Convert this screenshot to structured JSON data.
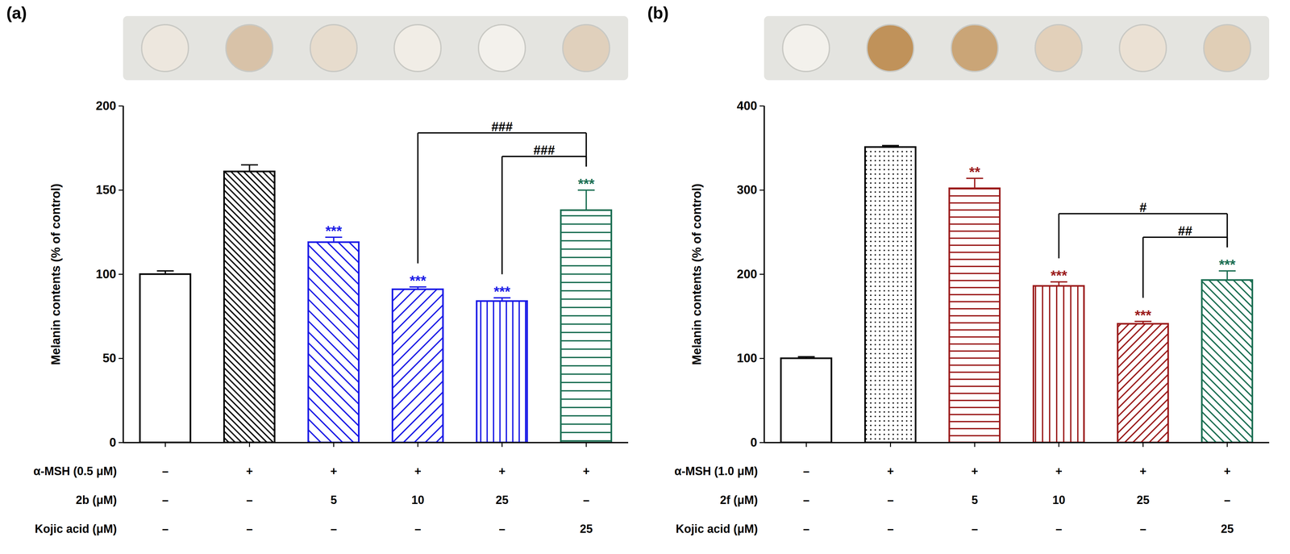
{
  "chart_data": [
    {
      "type": "bar",
      "panel_label": "(a)",
      "ylabel": "Melanin contents (% of control)",
      "categories": [
        null,
        null,
        null,
        null,
        null,
        null
      ],
      "values": [
        100,
        161,
        119,
        91,
        84,
        138
      ],
      "errors": [
        2,
        4,
        3,
        1.5,
        2,
        12
      ],
      "colors": [
        "#000000",
        "#000000",
        "#1a1ae6",
        "#1a1ae6",
        "#1a1ae6",
        "#1a6e52"
      ],
      "ylim": [
        0,
        200
      ],
      "yticks": [
        0,
        50,
        100,
        150,
        200
      ],
      "tick_labels": "y",
      "significance": [
        null,
        null,
        "***",
        "***",
        "***",
        "***"
      ],
      "comparisons": [
        {
          "from": 3,
          "to": 5,
          "label": "###"
        },
        {
          "from": 4,
          "to": 5,
          "label": "###"
        }
      ],
      "conditions": [
        {
          "label": "α-MSH (0.5 μM)",
          "values": [
            "–",
            "+",
            "+",
            "+",
            "+",
            "+"
          ]
        },
        {
          "label": "2b (μM)",
          "values": [
            "–",
            "–",
            "5",
            "10",
            "25",
            "–"
          ]
        },
        {
          "label": "Kojic acid (μM)",
          "values": [
            "–",
            "–",
            "–",
            "–",
            "–",
            "25"
          ]
        }
      ]
    },
    {
      "type": "bar",
      "panel_label": "(b)",
      "ylabel": "Melanin contents (% of control)",
      "categories": [
        null,
        null,
        null,
        null,
        null,
        null
      ],
      "values": [
        100,
        351,
        302,
        186,
        141,
        193
      ],
      "errors": [
        2,
        2,
        12,
        5,
        3,
        11
      ],
      "colors": [
        "#000000",
        "#000000",
        "#9b1b1b",
        "#9b1b1b",
        "#9b1b1b",
        "#1a6e52"
      ],
      "ylim": [
        0,
        400
      ],
      "yticks": [
        0,
        100,
        200,
        300,
        400
      ],
      "tick_labels": "y",
      "significance": [
        null,
        null,
        "**",
        "***",
        "***",
        "***"
      ],
      "comparisons": [
        {
          "from": 3,
          "to": 5,
          "label": "#"
        },
        {
          "from": 4,
          "to": 5,
          "label": "##"
        }
      ],
      "conditions": [
        {
          "label": "α-MSH (1.0 μM)",
          "values": [
            "–",
            "+",
            "+",
            "+",
            "+",
            "+"
          ]
        },
        {
          "label": "2f (μM)",
          "values": [
            "–",
            "–",
            "5",
            "10",
            "25",
            "–"
          ]
        },
        {
          "label": "Kojic acid (μM)",
          "values": [
            "–",
            "–",
            "–",
            "–",
            "–",
            "25"
          ]
        }
      ]
    }
  ]
}
